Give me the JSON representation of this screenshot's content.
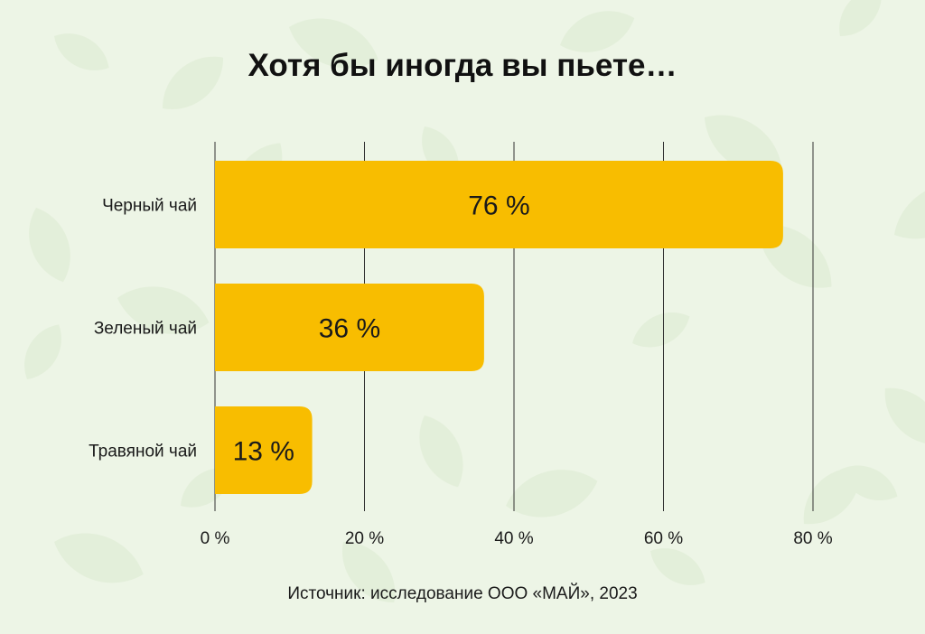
{
  "chart_data": {
    "type": "bar",
    "orientation": "horizontal",
    "title": "Хотя бы иногда вы пьете…",
    "categories": [
      "Черный чай",
      "Зеленый чай",
      "Травяной чай"
    ],
    "values": [
      76,
      36,
      13
    ],
    "value_labels": [
      "76 %",
      "36 %",
      "13 %"
    ],
    "xlim": [
      0,
      80
    ],
    "xticks": [
      0,
      20,
      40,
      60,
      80
    ],
    "xtick_labels": [
      "0 %",
      "20 %",
      "40 %",
      "60 %",
      "80 %"
    ],
    "grid": true,
    "source": "Источник: исследование ООО «МАЙ», 2023"
  },
  "colors": {
    "background": "#edf5e6",
    "bar": "#f8bd00",
    "text": "#1a1a1a",
    "grid": "#333333",
    "leaf_pattern": "#dfecd4"
  }
}
